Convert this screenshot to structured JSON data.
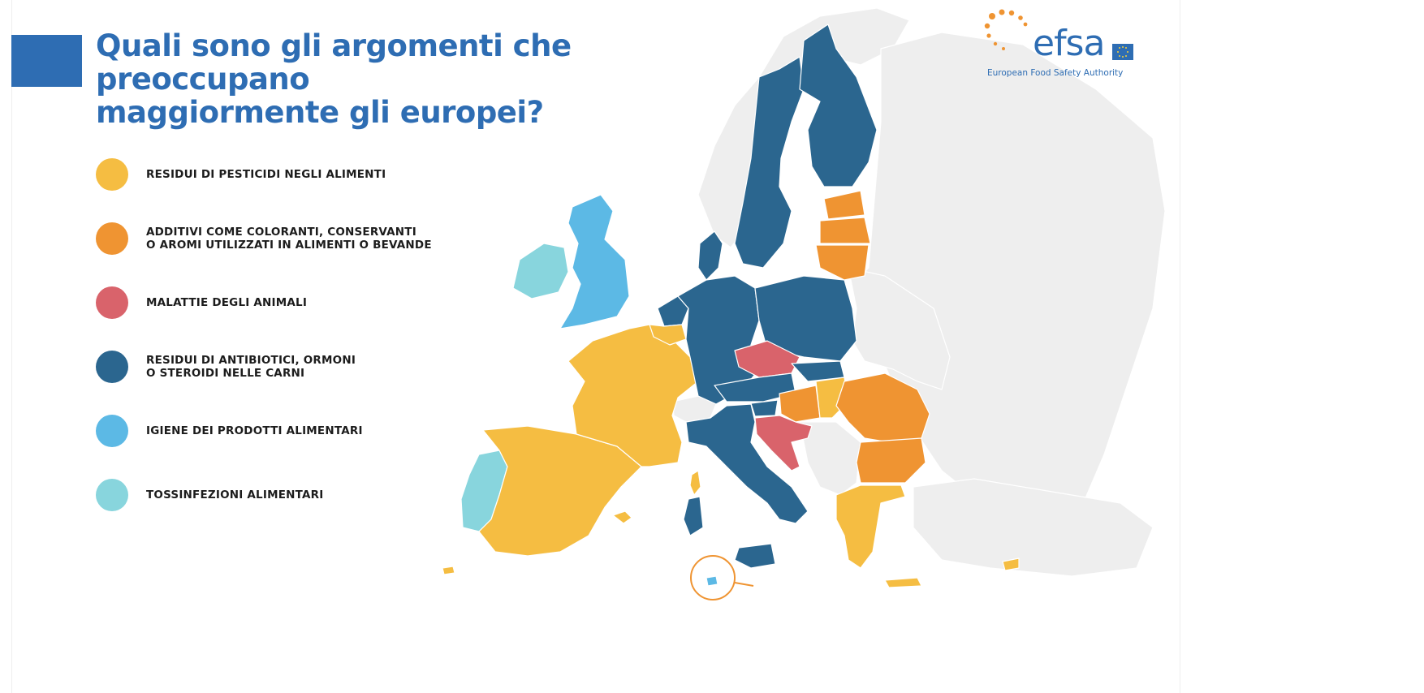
{
  "title_lines": [
    "Quali sono gli argomenti che preoccupano",
    "maggiormente gli europei?"
  ],
  "colors": {
    "pesticides": "#f5bd42",
    "additives": "#ef9432",
    "animal_diseases": "#d9636b",
    "antibiotics": "#2b668f",
    "hygiene": "#5cb9e5",
    "food_poisoning": "#88d5dd",
    "non_eu": "#eeeeee",
    "header_blue": "#2e6db3"
  },
  "legend": [
    {
      "key": "pesticides",
      "label": "RESIDUI DI PESTICIDI NEGLI ALIMENTI"
    },
    {
      "key": "additives",
      "label": "ADDITIVI COME COLORANTI, CONSERVANTI\nO AROMI UTILIZZATI IN ALIMENTI O BEVANDE"
    },
    {
      "key": "animal_diseases",
      "label": "MALATTIE DEGLI ANIMALI"
    },
    {
      "key": "antibiotics",
      "label": "RESIDUI DI ANTIBIOTICI, ORMONI\nO STEROIDI NELLE CARNI"
    },
    {
      "key": "hygiene",
      "label": "IGIENE DEI PRODOTTI ALIMENTARI"
    },
    {
      "key": "food_poisoning",
      "label": "TOSSINFEZIONI ALIMENTARI"
    }
  ],
  "country_categories": {
    "portugal": "food_poisoning",
    "spain": "pesticides",
    "france": "pesticides",
    "ireland": "food_poisoning",
    "united_kingdom": "hygiene",
    "belgium": "pesticides",
    "luxembourg": "pesticides",
    "netherlands": "antibiotics",
    "germany": "antibiotics",
    "denmark": "antibiotics",
    "sweden": "antibiotics",
    "finland": "antibiotics",
    "estonia": "additives",
    "latvia": "additives",
    "lithuania": "additives",
    "poland": "antibiotics",
    "czech_republic": "animal_diseases",
    "slovakia": "antibiotics",
    "austria": "antibiotics",
    "slovenia": "antibiotics",
    "hungary_west": "additives",
    "hungary_east": "pesticides",
    "croatia": "animal_diseases",
    "italy": "antibiotics",
    "sardinia": "antibiotics",
    "corsica": "pesticides",
    "sicily": "antibiotics",
    "malta": "hygiene",
    "romania": "additives",
    "bulgaria": "additives",
    "greece": "pesticides",
    "crete": "pesticides",
    "cyprus": "pesticides",
    "balearics": "pesticides",
    "canaries": "pesticides"
  },
  "logo": {
    "word": "efsa",
    "subtitle": "European Food Safety Authority"
  }
}
